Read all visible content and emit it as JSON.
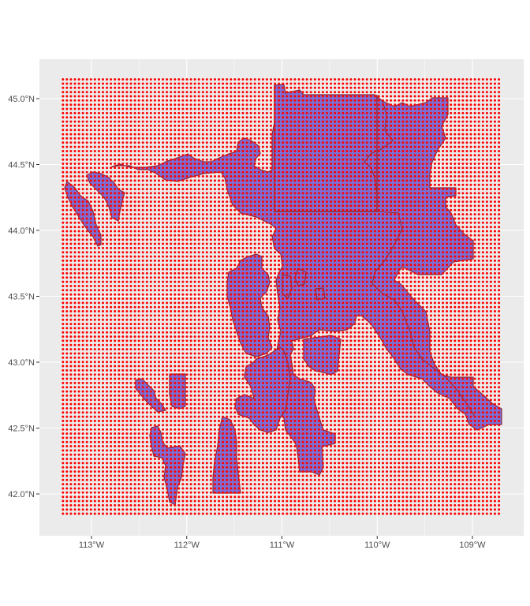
{
  "map": {
    "panel_background": "#ebebeb",
    "grid_color": "#ffffff",
    "polygon_fill": "#7b6fd6",
    "polygon_stroke": "#8b2a3a",
    "point_color": "#ff0000",
    "lon_ticks": [
      {
        "value": -113,
        "label": "113°W"
      },
      {
        "value": -112,
        "label": "112°W"
      },
      {
        "value": -111,
        "label": "111°W"
      },
      {
        "value": -110,
        "label": "110°W"
      },
      {
        "value": -109,
        "label": "109°W"
      }
    ],
    "lat_ticks": [
      {
        "value": 45.0,
        "label": "45.0°N"
      },
      {
        "value": 44.5,
        "label": "44.5°N"
      },
      {
        "value": 44.0,
        "label": "44.0°N"
      },
      {
        "value": 43.5,
        "label": "43.5°N"
      },
      {
        "value": 43.0,
        "label": "43.0°N"
      },
      {
        "value": 42.5,
        "label": "42.5°N"
      },
      {
        "value": 42.0,
        "label": "42.0°N"
      }
    ],
    "extent": {
      "lon": [
        -113.55,
        -108.55
      ],
      "lat": [
        41.7,
        45.3
      ]
    },
    "point_grid": {
      "lon": [
        -113.3,
        -108.7
      ],
      "lat": [
        41.85,
        45.15
      ],
      "spacing_lon": 0.042,
      "spacing_lat": 0.032
    }
  }
}
